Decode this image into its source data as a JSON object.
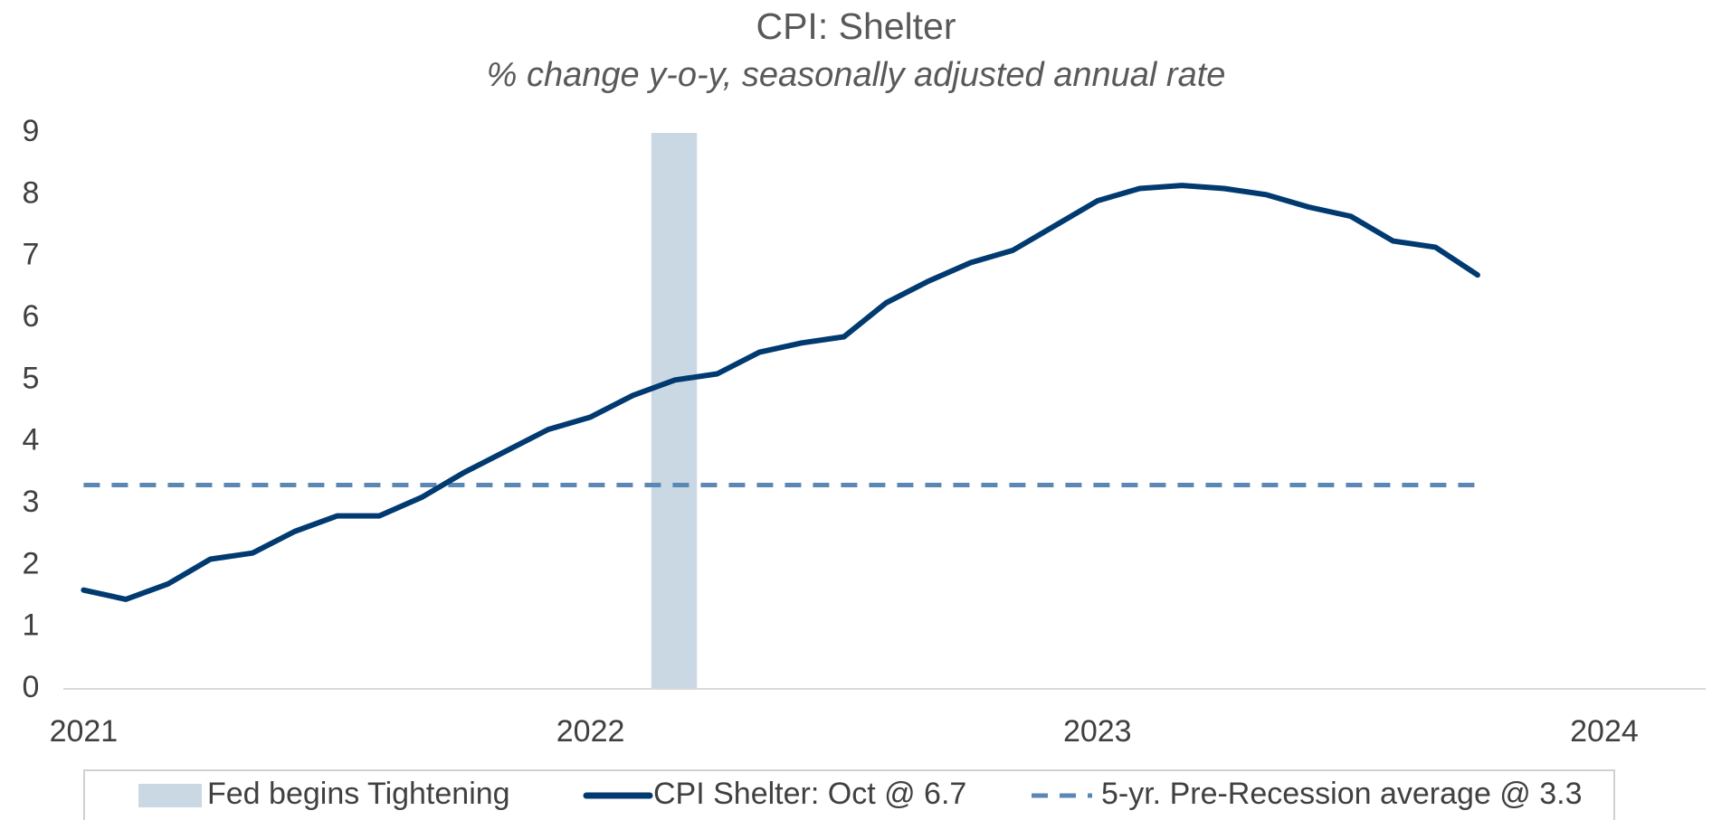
{
  "chart_data": {
    "type": "line",
    "title": "CPI: Shelter",
    "subtitle": "% change y-o-y, seasonally adjusted annual rate",
    "x": [
      2021,
      2021.0833,
      2021.1667,
      2021.25,
      2021.3333,
      2021.4167,
      2021.5,
      2021.5833,
      2021.6667,
      2021.75,
      2021.8333,
      2021.9167,
      2022,
      2022.0833,
      2022.1667,
      2022.25,
      2022.3333,
      2022.4167,
      2022.5,
      2022.5833,
      2022.6667,
      2022.75,
      2022.8333,
      2022.9167,
      2023,
      2023.0833,
      2023.1667,
      2023.25,
      2023.3333,
      2023.4167,
      2023.5,
      2023.5833,
      2023.6667,
      2023.75
    ],
    "series": [
      {
        "name": "CPI Shelter: Oct @ 6.7",
        "color": "#003a70",
        "values": [
          1.6,
          1.45,
          1.7,
          2.1,
          2.2,
          2.55,
          2.8,
          2.8,
          3.1,
          3.5,
          3.85,
          4.2,
          4.4,
          4.75,
          5.0,
          5.1,
          5.45,
          5.6,
          5.7,
          6.25,
          6.6,
          6.9,
          7.1,
          7.5,
          7.9,
          8.1,
          8.15,
          8.1,
          8.0,
          7.8,
          7.65,
          7.25,
          7.15,
          6.7
        ]
      }
    ],
    "reference_line": {
      "name": "5-yr. Pre-Recession average @ 3.3",
      "color": "#5b87b5",
      "value": 3.3,
      "x": [
        2021,
        2023.75
      ]
    },
    "band": {
      "name": "Fed begins Tightening",
      "color": "#cad8e4",
      "x": [
        2022.12,
        2022.21
      ]
    },
    "xlim": [
      2020.96,
      2024.2
    ],
    "xticks": [
      2021,
      2022,
      2023,
      2024
    ],
    "ylim": [
      0,
      9
    ],
    "yticks": [
      0,
      1,
      2,
      3,
      4,
      5,
      6,
      7,
      8,
      9
    ],
    "grid": false,
    "legend": "bottom"
  }
}
